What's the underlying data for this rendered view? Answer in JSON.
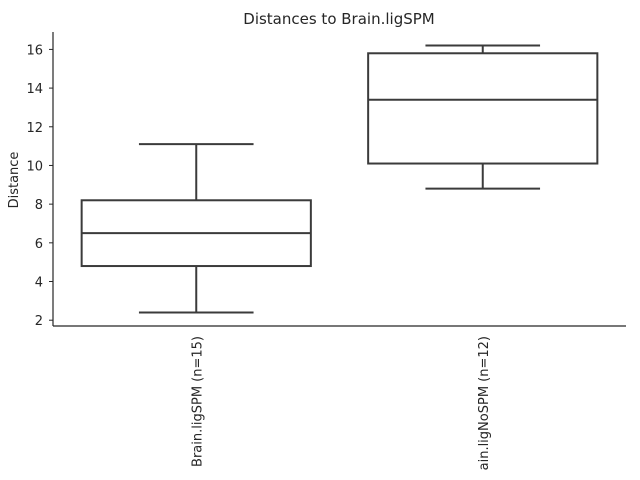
{
  "chart_data": {
    "type": "box",
    "title": "Distances to Brain.ligSPM",
    "xlabel": "",
    "ylabel": "Distance",
    "ylim": [
      1.7,
      16.9
    ],
    "yticks": [
      2,
      4,
      6,
      8,
      10,
      12,
      14,
      16
    ],
    "grid": false,
    "categories": [
      "Brain.ligSPM (n=15)",
      "ain.ligNoSPM (n=12)"
    ],
    "boxes": [
      {
        "category": "Brain.ligSPM (n=15)",
        "whisker_low": 2.4,
        "q1": 4.8,
        "median": 6.5,
        "q3": 8.2,
        "whisker_high": 11.1
      },
      {
        "category": "ain.ligNoSPM (n=12)",
        "whisker_low": 8.8,
        "q1": 10.1,
        "median": 13.4,
        "q3": 15.8,
        "whisker_high": 16.2
      }
    ],
    "colors": {
      "box_edge": "#3b3b3b",
      "box_fill": "#ffffff"
    }
  }
}
